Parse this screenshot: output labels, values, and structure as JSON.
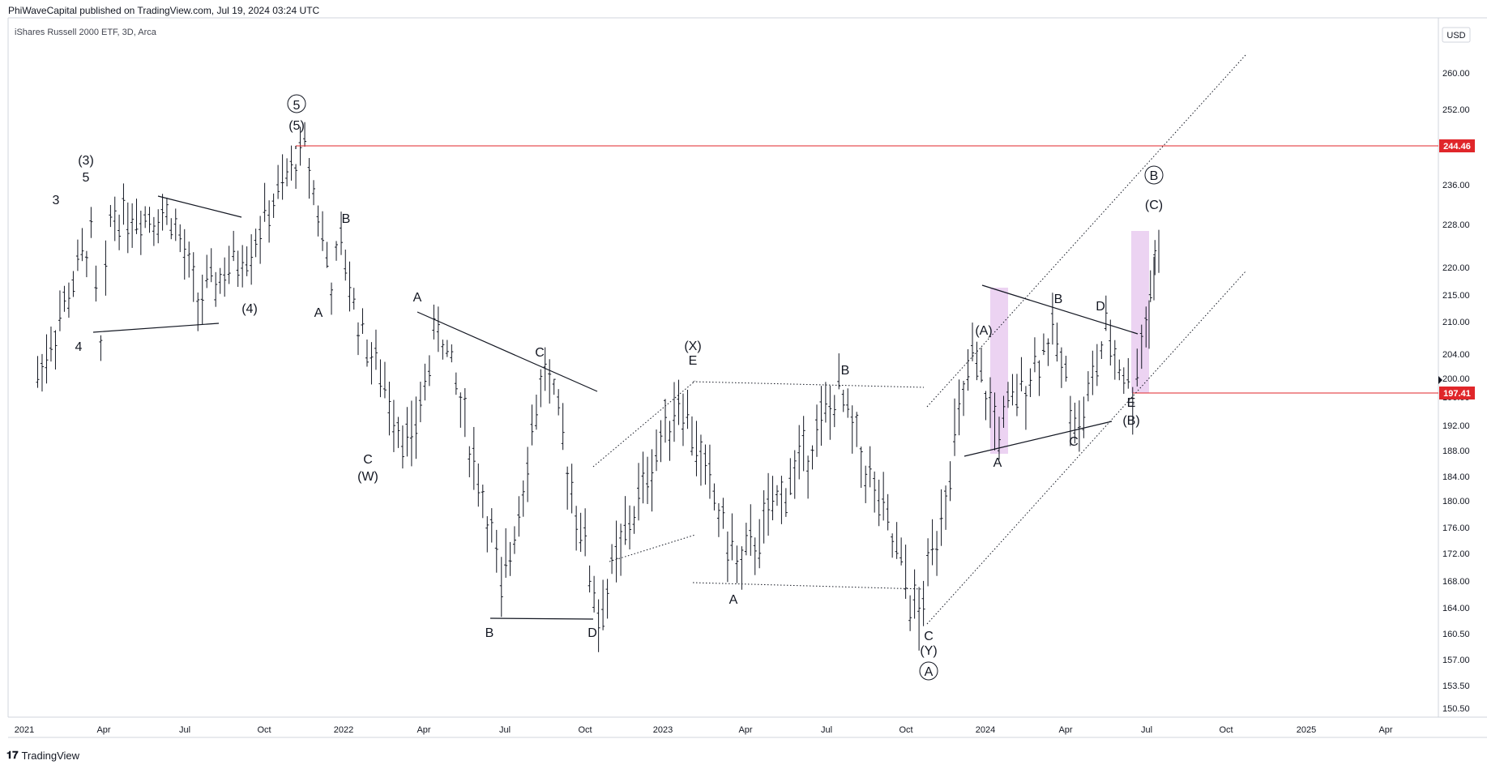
{
  "header": {
    "published": "PhiWaveCapital published on TradingView.com, Jul 19, 2024 03:24 UTC"
  },
  "footer": {
    "logo": "𝟏𝟕",
    "brand": "TradingView"
  },
  "colors": {
    "line": "#131722",
    "red": "#e0262a",
    "shade": "#e7c8ef",
    "axis": "#d1d4dc",
    "bar": "#131722"
  },
  "chart_data": {
    "type": "ohlc-line",
    "title": "iShares Russell 2000 ETF, 3D, Arca",
    "currency": "USD",
    "y_ticks": [
      "260.00",
      "252.00",
      "244.00",
      "236.00",
      "228.00",
      "220.00",
      "215.00",
      "210.00",
      "204.00",
      "200.00",
      "196.00",
      "192.00",
      "188.00",
      "184.00",
      "180.00",
      "176.00",
      "172.00",
      "168.00",
      "164.00",
      "160.50",
      "157.00",
      "153.50",
      "150.50"
    ],
    "x_ticks": [
      "2021",
      "Apr",
      "Jul",
      "Oct",
      "2022",
      "Apr",
      "Jul",
      "Oct",
      "2023",
      "Apr",
      "Jul",
      "Oct",
      "2024",
      "Apr",
      "Jul",
      "Oct",
      "2025",
      "Apr"
    ],
    "price_markers": [
      {
        "value": "244.46"
      },
      {
        "value": "197.41"
      }
    ],
    "series": [
      {
        "points": [
          [
            "2021-01",
            200
          ],
          [
            "2021-03",
            226
          ],
          [
            "2021-03",
            204
          ],
          [
            "2021-03",
            230
          ],
          [
            "2021-06",
            230
          ],
          [
            "2021-07",
            214
          ],
          [
            "2021-09",
            224
          ],
          [
            "2021-11",
            244
          ],
          [
            "2021-12",
            217
          ],
          [
            "2021-12",
            224
          ],
          [
            "2022-01",
            210
          ],
          [
            "2022-02",
            198
          ],
          [
            "2022-03",
            188
          ],
          [
            "2022-04",
            210
          ],
          [
            "2022-06",
            175
          ],
          [
            "2022-06",
            165
          ],
          [
            "2022-08",
            202
          ],
          [
            "2022-10",
            163
          ],
          [
            "2022-12",
            186
          ],
          [
            "2023-01",
            197
          ],
          [
            "2023-03",
            172
          ],
          [
            "2023-03",
            170
          ],
          [
            "2023-07",
            197
          ],
          [
            "2023-10",
            162
          ],
          [
            "2023-12",
            203
          ],
          [
            "2024-01",
            191
          ],
          [
            "2024-03",
            208
          ],
          [
            "2024-04",
            191
          ],
          [
            "2024-05",
            208
          ],
          [
            "2024-06",
            197
          ],
          [
            "2024-07",
            226
          ]
        ]
      }
    ],
    "labels": [
      "3",
      "5",
      "(3)",
      "4",
      "(4)",
      "(5)",
      "5",
      "A",
      "B",
      "C",
      "(W)",
      "A",
      "B",
      "C",
      "D",
      "E",
      "(X)",
      "A",
      "B",
      "C",
      "(Y)",
      "A",
      "(A)",
      "A",
      "B",
      "C",
      "D",
      "E",
      "(B)",
      "B",
      "(C)"
    ]
  }
}
